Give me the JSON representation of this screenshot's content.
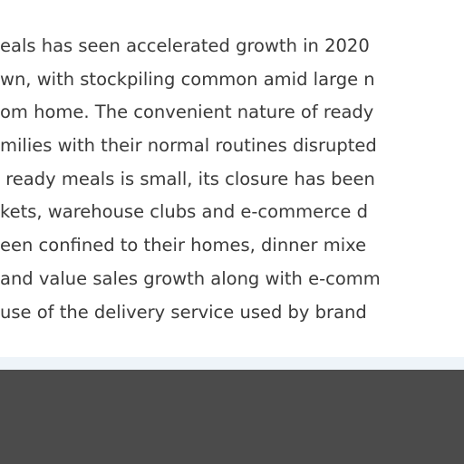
{
  "article": {
    "lines": [
      "eals has seen accelerated growth in 2020",
      "wn, with stockpiling common amid large n",
      "om home. The convenient nature of ready",
      "milies with their normal routines disrupted",
      " ready meals is small, its closure has been",
      "kets, warehouse clubs and e-commerce d",
      "een confined to their homes, dinner mixe",
      "and value sales growth along with e-comm",
      "use of the delivery service used by brand"
    ]
  },
  "colors": {
    "text": "#3a3a3a",
    "background": "#ffffff",
    "divider": "#eef4f9",
    "footer": "#4b4b4b"
  }
}
